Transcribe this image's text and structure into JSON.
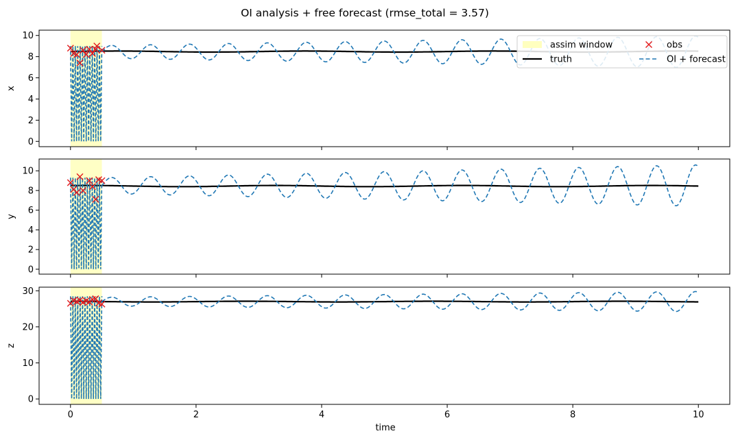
{
  "chart_data": {
    "type": "line",
    "title": "OI analysis + free forecast (rmse_total = 3.57)",
    "xlabel": "time",
    "xlim": [
      -0.5,
      10.5
    ],
    "xticks": [
      0,
      2,
      4,
      6,
      8,
      10
    ],
    "assim_window": [
      0,
      0.5
    ],
    "colors": {
      "window": "#ffffbf",
      "truth": "#000000",
      "obs": "#e31a1c",
      "forecast": "#1f77b4"
    },
    "legend": {
      "placement": "top-right",
      "entries": [
        {
          "key": "window",
          "label": "assim window"
        },
        {
          "key": "obs",
          "label": "obs"
        },
        {
          "key": "truth",
          "label": "truth"
        },
        {
          "key": "forecast",
          "label": "OI + forecast"
        }
      ]
    },
    "panels": [
      {
        "ylabel": "x",
        "ylim": [
          -0.5,
          10.5
        ],
        "yticks": [
          0,
          2,
          4,
          6,
          8,
          10
        ],
        "truth_mean": 8.48,
        "truth_wobble": 0.05,
        "forecast": {
          "center": 8.45,
          "amp_start": 0.6,
          "amp_end": 1.5,
          "period": 0.62,
          "phase": 0.0
        },
        "window_spikes": {
          "high": 9.0,
          "low": 0,
          "count": 13
        },
        "obs": [
          [
            0.0,
            8.8
          ],
          [
            0.05,
            8.3
          ],
          [
            0.1,
            8.2
          ],
          [
            0.15,
            7.4
          ],
          [
            0.2,
            8.6
          ],
          [
            0.25,
            8.2
          ],
          [
            0.3,
            8.7
          ],
          [
            0.35,
            8.3
          ],
          [
            0.4,
            8.7
          ],
          [
            0.42,
            9.0
          ],
          [
            0.5,
            8.6
          ]
        ]
      },
      {
        "ylabel": "y",
        "ylim": [
          -0.5,
          11.2
        ],
        "yticks": [
          0,
          2,
          4,
          6,
          8,
          10
        ],
        "truth_mean": 8.45,
        "truth_wobble": 0.06,
        "forecast": {
          "center": 8.5,
          "amp_start": 0.8,
          "amp_end": 2.1,
          "period": 0.62,
          "phase": 0.0
        },
        "window_spikes": {
          "high": 9.3,
          "low": 0,
          "count": 13
        },
        "obs": [
          [
            0.0,
            8.8
          ],
          [
            0.05,
            8.1
          ],
          [
            0.1,
            7.8
          ],
          [
            0.15,
            9.4
          ],
          [
            0.2,
            8.0
          ],
          [
            0.3,
            9.0
          ],
          [
            0.35,
            8.4
          ],
          [
            0.4,
            7.1
          ],
          [
            0.45,
            9.1
          ],
          [
            0.5,
            9.0
          ]
        ]
      },
      {
        "ylabel": "z",
        "ylim": [
          -1.5,
          31
        ],
        "yticks": [
          0,
          10,
          20,
          30
        ],
        "truth_mean": 27.0,
        "truth_wobble": 0.1,
        "forecast": {
          "center": 27.0,
          "amp_start": 1.2,
          "amp_end": 2.8,
          "period": 0.62,
          "phase": 0.0
        },
        "window_spikes": {
          "high": 28.5,
          "low": 0,
          "count": 13
        },
        "obs": [
          [
            0.0,
            26.5
          ],
          [
            0.05,
            27.3
          ],
          [
            0.1,
            27.0
          ],
          [
            0.15,
            27.4
          ],
          [
            0.2,
            26.8
          ],
          [
            0.25,
            27.2
          ],
          [
            0.3,
            26.9
          ],
          [
            0.35,
            27.6
          ],
          [
            0.4,
            27.8
          ],
          [
            0.45,
            26.6
          ],
          [
            0.5,
            26.3
          ]
        ]
      }
    ]
  }
}
